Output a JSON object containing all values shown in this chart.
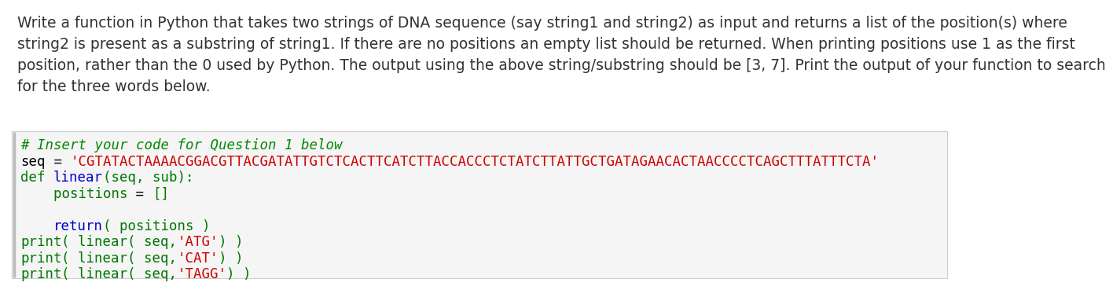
{
  "description_text": [
    "Write a function in Python that takes two strings of DNA sequence (say string1 and string2) as input and returns a list of the position(s) where",
    "string2 is present as a substring of string1. If there are no positions an empty list should be returned. When printing positions use 1 as the first",
    "position, rather than the 0 used by Python. The output using the above string/substring should be [3, 7]. Print the output of your function to search",
    "for the three words below."
  ],
  "code_lines": [
    {
      "parts": [
        {
          "text": "# Insert your code for Question 1 below",
          "color": "#008800",
          "style": "italic"
        }
      ]
    },
    {
      "parts": [
        {
          "text": "seq",
          "color": "#000000",
          "style": "normal"
        },
        {
          "text": " = ",
          "color": "#000000",
          "style": "normal"
        },
        {
          "text": "'CGTATACTAAAACGGACGTTACGATATTGTCTCACTTCATCTTACCACCCTCTATCTTATTGCTGATAGAACACTAACCCCTCAGCTTTATTTCTA'",
          "color": "#cc0000",
          "style": "normal"
        }
      ]
    },
    {
      "parts": [
        {
          "text": "def ",
          "color": "#007700",
          "style": "normal"
        },
        {
          "text": "linear",
          "color": "#0000cc",
          "style": "normal"
        },
        {
          "text": "(seq, sub):",
          "color": "#007700",
          "style": "normal"
        }
      ]
    },
    {
      "parts": [
        {
          "text": "    positions",
          "color": "#007700",
          "style": "normal"
        },
        {
          "text": " = ",
          "color": "#000000",
          "style": "normal"
        },
        {
          "text": "[]",
          "color": "#007700",
          "style": "normal"
        }
      ]
    },
    {
      "parts": []
    },
    {
      "parts": [
        {
          "text": "    ",
          "color": "#007700",
          "style": "normal"
        },
        {
          "text": "return",
          "color": "#0000cc",
          "style": "normal"
        },
        {
          "text": "( positions )",
          "color": "#007700",
          "style": "normal"
        }
      ]
    },
    {
      "parts": [
        {
          "text": "print",
          "color": "#007700",
          "style": "normal"
        },
        {
          "text": "( linear( seq,",
          "color": "#007700",
          "style": "normal"
        },
        {
          "text": "'ATG'",
          "color": "#cc0000",
          "style": "normal"
        },
        {
          "text": ") )",
          "color": "#007700",
          "style": "normal"
        }
      ]
    },
    {
      "parts": [
        {
          "text": "print",
          "color": "#007700",
          "style": "normal"
        },
        {
          "text": "( linear( seq,",
          "color": "#007700",
          "style": "normal"
        },
        {
          "text": "'CAT'",
          "color": "#cc0000",
          "style": "normal"
        },
        {
          "text": ") )",
          "color": "#007700",
          "style": "normal"
        }
      ]
    },
    {
      "parts": [
        {
          "text": "print",
          "color": "#007700",
          "style": "normal"
        },
        {
          "text": "( linear( seq,",
          "color": "#007700",
          "style": "normal"
        },
        {
          "text": "'TAGG'",
          "color": "#cc0000",
          "style": "normal"
        },
        {
          "text": ") )",
          "color": "#007700",
          "style": "normal"
        }
      ]
    }
  ],
  "bg_color": "#ffffff",
  "code_bg_color": "#f5f5f5",
  "code_border_color": "#cccccc",
  "desc_font_size": 13.5,
  "code_font_size": 12.5,
  "left_border_color": "#bbbbbb",
  "desc_text_color": "#333333"
}
